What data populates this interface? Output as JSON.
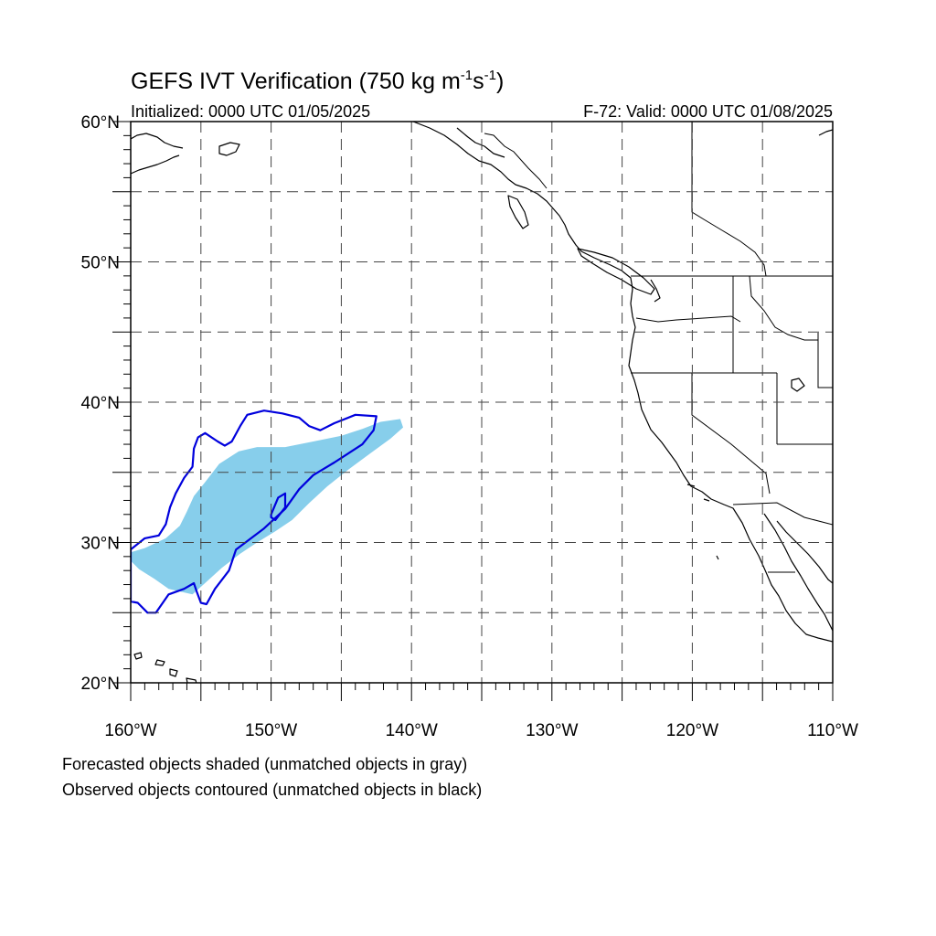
{
  "title_main": "GEFS IVT Verification (750 kg m",
  "title_sup1": "-1",
  "title_mid": "s",
  "title_sup2": "-1",
  "title_end": ")",
  "initialized": "Initialized: 0000 UTC 01/05/2025",
  "valid": "F-72: Valid: 0000 UTC 01/08/2025",
  "lat_labels": [
    {
      "text": "60°N",
      "lat": 60
    },
    {
      "text": "50°N",
      "lat": 50
    },
    {
      "text": "40°N",
      "lat": 40
    },
    {
      "text": "30°N",
      "lat": 30
    },
    {
      "text": "20°N",
      "lat": 20
    }
  ],
  "lon_labels": [
    {
      "text": "160°W",
      "lon": -160
    },
    {
      "text": "150°W",
      "lon": -150
    },
    {
      "text": "140°W",
      "lon": -140
    },
    {
      "text": "130°W",
      "lon": -130
    },
    {
      "text": "120°W",
      "lon": -120
    },
    {
      "text": "110°W",
      "lon": -110
    }
  ],
  "note_forecast": "Forecasted objects shaded (unmatched objects in gray)",
  "note_observed": "Observed objects contoured (unmatched objects in black)",
  "colors": {
    "forecast_fill": "#87ceeb",
    "observed_contour": "#0000dd",
    "coast": "#000000",
    "grid": "#444444"
  },
  "chart_data": {
    "type": "map",
    "lon_range": [
      -160,
      -110
    ],
    "lat_range": [
      20,
      60
    ],
    "grid_spacing_deg": 5,
    "forecast_object": [
      [
        -160,
        29.3
      ],
      [
        -159,
        29.6
      ],
      [
        -157.5,
        30.3
      ],
      [
        -156.5,
        31.2
      ],
      [
        -156,
        32.2
      ],
      [
        -155.5,
        33.3
      ],
      [
        -154.7,
        34.3
      ],
      [
        -153.7,
        35.6
      ],
      [
        -152.3,
        36.5
      ],
      [
        -151,
        36.8
      ],
      [
        -149,
        36.8
      ],
      [
        -147,
        37.2
      ],
      [
        -145,
        37.6
      ],
      [
        -143.5,
        38.1
      ],
      [
        -142.2,
        38.6
      ],
      [
        -140.8,
        38.8
      ],
      [
        -140.6,
        38.2
      ],
      [
        -141.5,
        37.4
      ],
      [
        -143,
        36.3
      ],
      [
        -144.5,
        35.2
      ],
      [
        -146,
        34
      ],
      [
        -147.3,
        32.8
      ],
      [
        -148.5,
        31.6
      ],
      [
        -149.7,
        30.8
      ],
      [
        -151,
        30
      ],
      [
        -152.2,
        29.2
      ],
      [
        -153.5,
        28.2
      ],
      [
        -154.6,
        27.2
      ],
      [
        -155.6,
        26.3
      ],
      [
        -157.3,
        26.7
      ],
      [
        -158.3,
        27.4
      ],
      [
        -159.4,
        28.1
      ],
      [
        -160,
        28.7
      ]
    ],
    "observed_object": [
      [
        -160,
        29.5
      ],
      [
        -159,
        30.3
      ],
      [
        -158,
        30.5
      ],
      [
        -157.5,
        31.3
      ],
      [
        -157.2,
        32.5
      ],
      [
        -156.8,
        33.5
      ],
      [
        -156.2,
        34.6
      ],
      [
        -155.6,
        35.4
      ],
      [
        -155.5,
        36.7
      ],
      [
        -155.2,
        37.5
      ],
      [
        -154.7,
        37.8
      ],
      [
        -153.8,
        37.2
      ],
      [
        -153.3,
        36.9
      ],
      [
        -152.8,
        37.2
      ],
      [
        -152.2,
        38.3
      ],
      [
        -151.7,
        39.1
      ],
      [
        -150.5,
        39.4
      ],
      [
        -149.2,
        39.2
      ],
      [
        -148,
        38.9
      ],
      [
        -147.3,
        38.3
      ],
      [
        -146.5,
        38.0
      ],
      [
        -145.5,
        38.5
      ],
      [
        -144,
        39.1
      ],
      [
        -142.5,
        39.0
      ],
      [
        -142.7,
        38.0
      ],
      [
        -143.5,
        37.0
      ],
      [
        -145.5,
        35.7
      ],
      [
        -147,
        34.8
      ],
      [
        -148,
        33.8
      ],
      [
        -149,
        32.4
      ],
      [
        -150.5,
        31.0
      ],
      [
        -152.5,
        29.5
      ],
      [
        -153,
        28.0
      ],
      [
        -154,
        26.7
      ],
      [
        -154.6,
        25.6
      ],
      [
        -155,
        25.7
      ],
      [
        -155.3,
        26.5
      ],
      [
        -155.5,
        27.1
      ],
      [
        -156.2,
        26.7
      ],
      [
        -157.3,
        26.3
      ],
      [
        -158.2,
        25.0
      ],
      [
        -158.8,
        25.0
      ],
      [
        -159.5,
        25.7
      ],
      [
        -160,
        25.8
      ]
    ],
    "observed_inner_object": [
      [
        -150,
        32.0
      ],
      [
        -149.5,
        33.2
      ],
      [
        -149,
        33.5
      ],
      [
        -149,
        32.5
      ],
      [
        -149.7,
        31.6
      ],
      [
        -150,
        31.8
      ]
    ]
  }
}
